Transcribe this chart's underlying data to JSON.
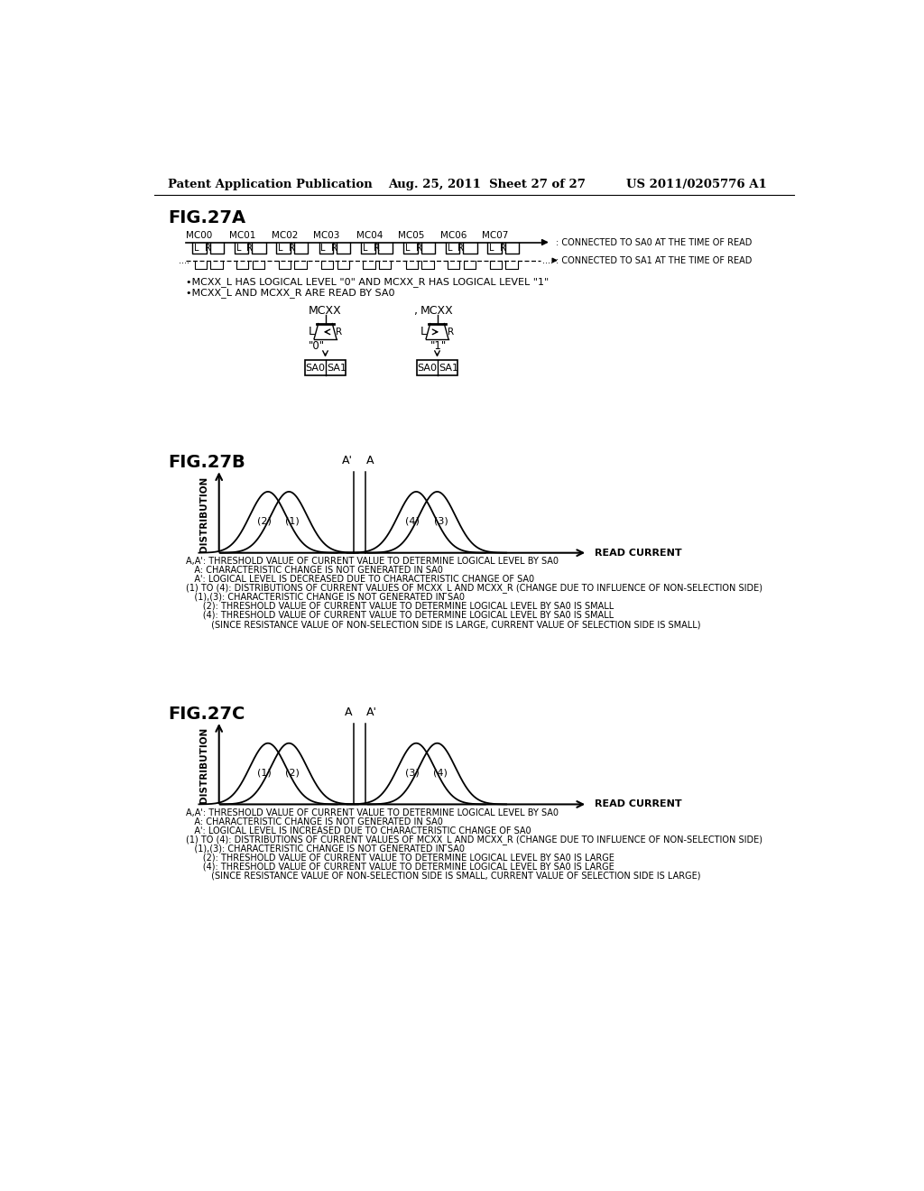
{
  "bg_color": "#ffffff",
  "header_left": "Patent Application Publication",
  "header_center": "Aug. 25, 2011  Sheet 27 of 27",
  "header_right": "US 2011/0205776 A1",
  "fig27a_label": "FIG.27A",
  "fig27b_label": "FIG.27B",
  "fig27c_label": "FIG.27C",
  "mc_labels": [
    "MC00",
    "MC01",
    "MC02",
    "MC03",
    "MC04",
    "MC05",
    "MC06",
    "MC07"
  ],
  "legend1": ": CONNECTED TO SA0 AT THE TIME OF READ",
  "legend2": ": CONNECTED TO SA1 AT THE TIME OF READ",
  "bullet1": "•MCXX_L HAS LOGICAL LEVEL \"0\" AND MCXX_R HAS LOGICAL LEVEL \"1\"",
  "bullet2": "•MCXX_L AND MCXX_R ARE READ BY SA0",
  "fig27b_notes": [
    "A,A': THRESHOLD VALUE OF CURRENT VALUE TO DETERMINE LOGICAL LEVEL BY SA0",
    "   A: CHARACTERISTIC CHANGE IS NOT GENERATED IN SA0",
    "   A': LOGICAL LEVEL IS DECREASED DUE TO CHARACTERISTIC CHANGE OF SA0",
    "(1) TO (4): DISTRIBUTIONS OF CURRENT VALUES OF MCXX_L AND MCXX_R (CHANGE DUE TO INFLUENCE OF NON-SELECTION SIDE)",
    "   (1),(3): CHARACTERISTIC CHANGE IS NOT GENERATED IN SA0",
    "      (2): THRESHOLD VALUE OF CURRENT VALUE TO DETERMINE LOGICAL LEVEL BY SA0 IS SMALL",
    "      (4): THRESHOLD VALUE OF CURRENT VALUE TO DETERMINE LOGICAL LEVEL BY SA0 IS SMALL",
    "         (SINCE RESISTANCE VALUE OF NON-SELECTION SIDE IS LARGE, CURRENT VALUE OF SELECTION SIDE IS SMALL)"
  ],
  "fig27c_notes": [
    "A,A': THRESHOLD VALUE OF CURRENT VALUE TO DETERMINE LOGICAL LEVEL BY SA0",
    "   A: CHARACTERISTIC CHANGE IS NOT GENERATED IN SA0",
    "   A': LOGICAL LEVEL IS INCREASED DUE TO CHARACTERISTIC CHANGE OF SA0",
    "(1) TO (4): DISTRIBUTIONS OF CURRENT VALUES OF MCXX_L AND MCXX_R (CHANGE DUE TO INFLUENCE OF NON-SELECTION SIDE)",
    "   (1),(3): CHARACTERISTIC CHANGE IS NOT GENERATED IN SA0",
    "      (2): THRESHOLD VALUE OF CURRENT VALUE TO DETERMINE LOGICAL LEVEL BY SA0 IS LARGE",
    "      (4): THRESHOLD VALUE OF CURRENT VALUE TO DETERMINE LOGICAL LEVEL BY SA0 IS LARGE",
    "         (SINCE RESISTANCE VALUE OF NON-SELECTION SIDE IS SMALL, CURRENT VALUE OF SELECTION SIDE IS LARGE)"
  ]
}
